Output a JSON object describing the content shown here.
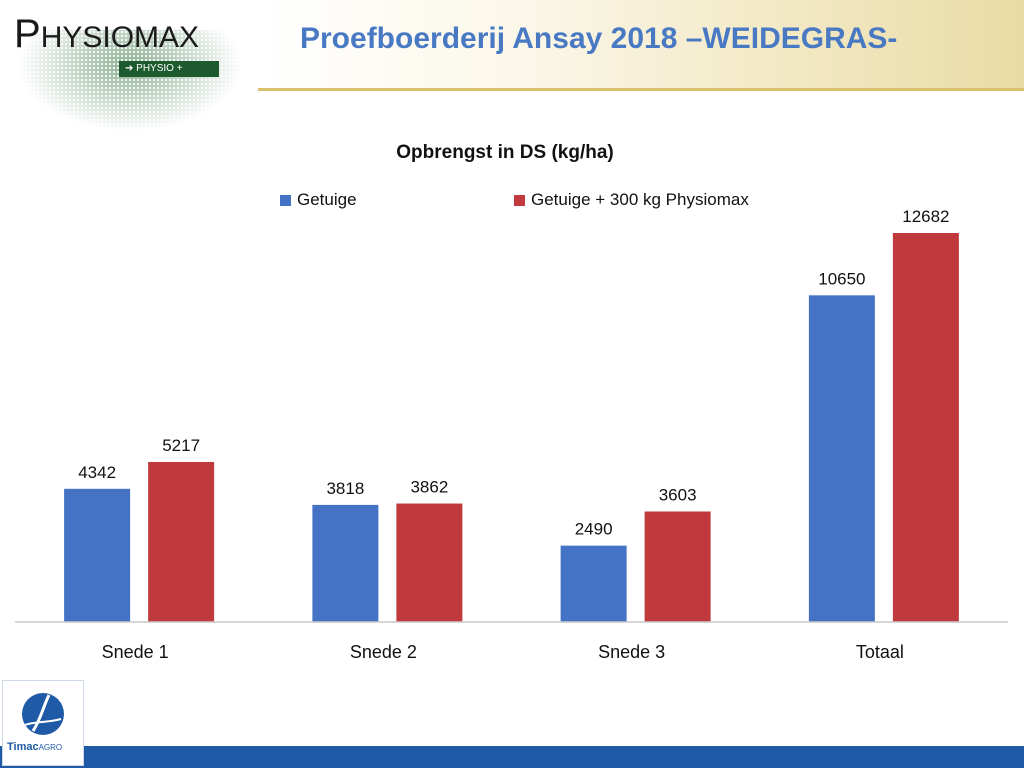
{
  "header": {
    "brand": "PHYSIOMAX",
    "brand_first": "P",
    "brand_rest": "HYSIOMAX",
    "tag": "➔ PHYSIO +",
    "title": "Proefboerderij Ansay 2018 –WEIDEGRAS-"
  },
  "footer": {
    "logo_text": "Timac",
    "logo_sub": "AGRO"
  },
  "colors": {
    "series1": "#4472c4",
    "series2": "#c0393c",
    "title": "#4a79c4",
    "footer": "#1f5aa6"
  },
  "chart_data": {
    "type": "bar",
    "title": "Opbrengst in DS (kg/ha)",
    "categories": [
      "Snede 1",
      "Snede 2",
      "Snede 3",
      "Totaal"
    ],
    "series": [
      {
        "name": "Getuige",
        "values": [
          4342,
          3818,
          2490,
          10650
        ]
      },
      {
        "name": "Getuige + 300 kg Physiomax",
        "values": [
          5217,
          3862,
          3603,
          12682
        ]
      }
    ],
    "legend": "top",
    "grid": false,
    "ylim": [
      0,
      14000
    ]
  }
}
